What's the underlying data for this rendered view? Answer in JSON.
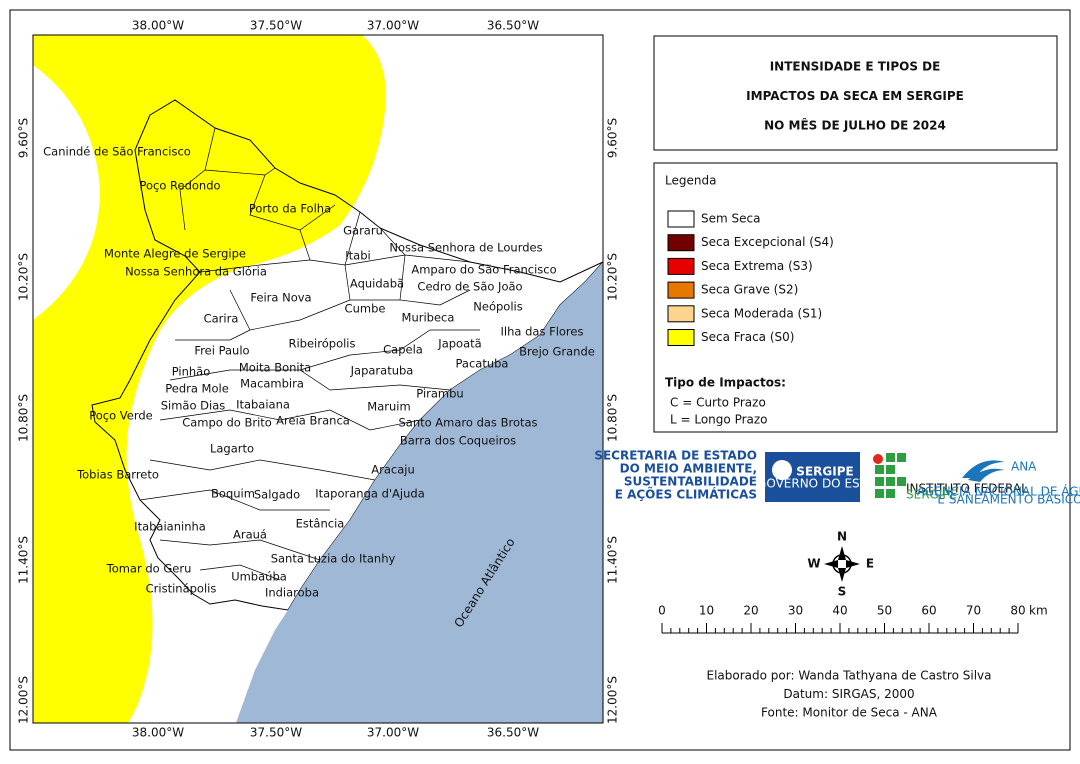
{
  "title": {
    "lines": [
      "INTENSIDADE E TIPOS DE",
      "IMPACTOS DA SECA EM SERGIPE",
      "NO MÊS DE JULHO DE 2024"
    ]
  },
  "coordinates": {
    "longitude": [
      "38.00°W",
      "37.50°W",
      "37.00°W",
      "36.50°W"
    ],
    "latitude": [
      "9.60°S",
      "10.20°S",
      "10.80°S",
      "11.40°S",
      "12.00°S"
    ]
  },
  "municipalities": [
    "Canindé de São Francisco",
    "Poço Redondo",
    "Porto da Folha",
    "Gararu",
    "Monte Alegre de Sergipe",
    "Nossa Senhora de Lourdes",
    "Itabi",
    "Nossa Senhora da Glória",
    "Amparo do São Francisco",
    "Aquidabã",
    "Cedro de São João",
    "Feira Nova",
    "Neópolis",
    "Cumbe",
    "Carira",
    "Muribeca",
    "Ilha das Flores",
    "Ribeirópolis",
    "Japoatã",
    "Capela",
    "Brejo Grande",
    "Frei Paulo",
    "Pacatuba",
    "Moita Bonita",
    "Pinhão",
    "Japaratuba",
    "Macambira",
    "Pedra Mole",
    "Pirambu",
    "Simão Dias",
    "Itabaiana",
    "Maruim",
    "Poço Verde",
    "Campo do Brito",
    "Areia Branca",
    "Santo Amaro das Brotas",
    "Barra dos Coqueiros",
    "Lagarto",
    "Aracaju",
    "Tobias Barreto",
    "Boquim",
    "Salgado",
    "Itaporanga d'Ajuda",
    "Itabaianinha",
    "Estância",
    "Arauá",
    "Santa Luzia do Itanhy",
    "Tomar do Geru",
    "Umbaúba",
    "Cristinápolis",
    "Indiaroba"
  ],
  "ocean_label": "Oceano Atlântico",
  "legend": {
    "title": "Legenda",
    "items": [
      {
        "name": "Sem Seca",
        "color": "#ffffff"
      },
      {
        "name": "Seca Excepcional (S4)",
        "color": "#730000"
      },
      {
        "name": "Seca Extrema (S3)",
        "color": "#e60000"
      },
      {
        "name": "Seca Grave (S2)",
        "color": "#e67800"
      },
      {
        "name": "Seca Moderada (S1)",
        "color": "#fcd38f"
      },
      {
        "name": "Seca Fraca (S0)",
        "color": "#ffff00"
      }
    ]
  },
  "impacts": {
    "title": "Tipo de Impactos:",
    "items": [
      "C = Curto Prazo",
      "L = Longo Prazo"
    ]
  },
  "logos": {
    "semac": [
      "SECRETARIA DE ESTADO",
      "DO MEIO AMBIENTE,",
      "SUSTENTABILIDADE",
      "E AÇÕES CLIMÁTICAS"
    ],
    "sergipe": [
      "SERGIPE",
      "GOVERNO DO ESTADO"
    ],
    "ifs": [
      "INSTITUTO FEDERAL",
      "SERGIPE"
    ],
    "ana": [
      "ANA",
      "AGÊNCIA NACIONAL DE ÁGUAS",
      "E SANEAMENTO BÁSICO"
    ]
  },
  "compass": [
    "N",
    "S",
    "E",
    "W"
  ],
  "scale": {
    "ticks": [
      0,
      10,
      20,
      30,
      40,
      50,
      60,
      70,
      80
    ],
    "unit": "km"
  },
  "credits": [
    "Elaborado por: Wanda Tathyana de Castro Silva",
    "Datum: SIRGAS, 2000",
    "Fonte: Monitor de Seca - ANA"
  ]
}
